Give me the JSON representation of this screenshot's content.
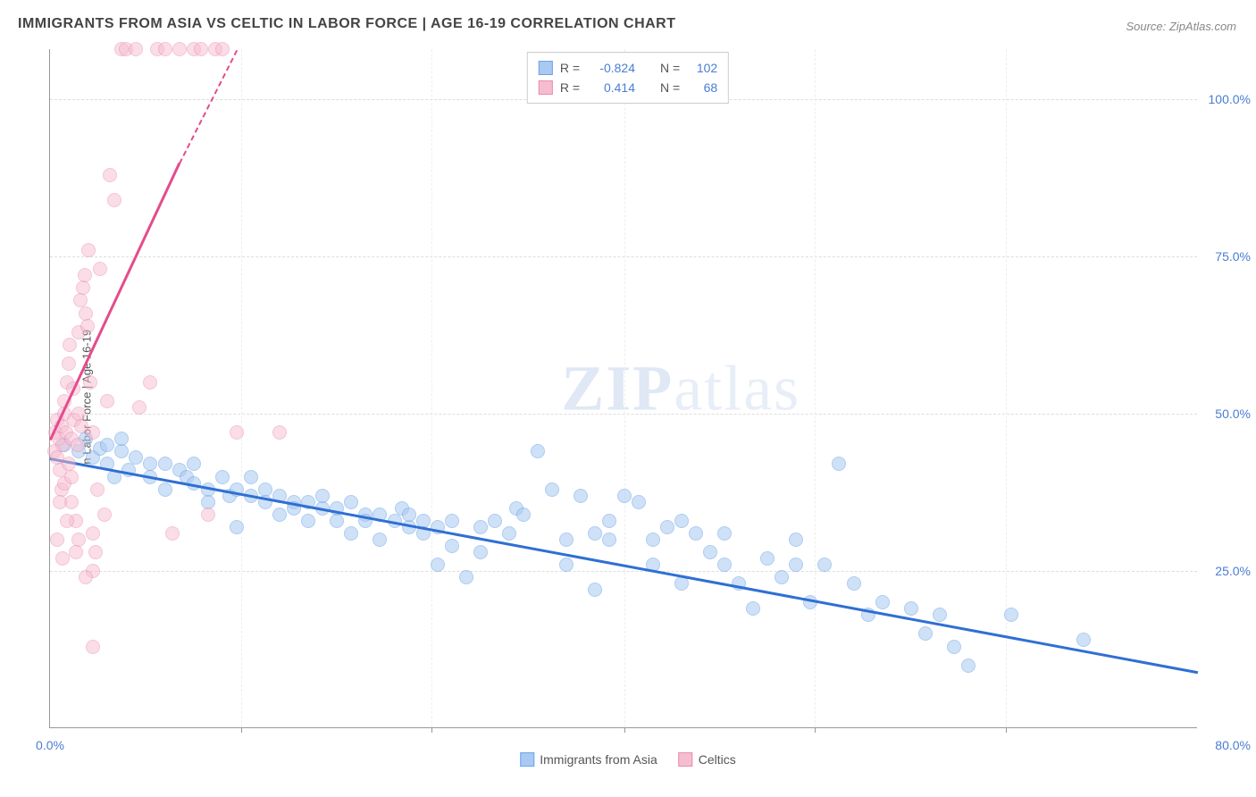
{
  "chart": {
    "type": "scatter",
    "title": "IMMIGRANTS FROM ASIA VS CELTIC IN LABOR FORCE | AGE 16-19 CORRELATION CHART",
    "source_label": "Source: ZipAtlas.com",
    "ylabel": "In Labor Force | Age 16-19",
    "background_color": "#ffffff",
    "grid_color": "#dddddd",
    "axis_color": "#999999",
    "title_fontsize": 16,
    "label_fontsize": 13,
    "tick_fontsize": 14,
    "tick_color": "#4a7dd4",
    "xlim": [
      0,
      80
    ],
    "ylim": [
      0,
      108
    ],
    "x_ticks": [
      0,
      80
    ],
    "x_tick_labels": [
      "0.0%",
      "80.0%"
    ],
    "x_minor_ticks": [
      13.3,
      26.6,
      40,
      53.3,
      66.6
    ],
    "y_ticks": [
      25,
      50,
      75,
      100
    ],
    "y_tick_labels": [
      "25.0%",
      "50.0%",
      "75.0%",
      "100.0%"
    ],
    "watermark_text_bold": "ZIP",
    "watermark_text_light": "atlas",
    "series": [
      {
        "name": "Immigrants from Asia",
        "label": "Immigrants from Asia",
        "fill_color": "#a9c9f2",
        "stroke_color": "#6ba3e8",
        "fill_opacity": 0.55,
        "marker_radius": 8,
        "r_value": "-0.824",
        "n_value": "102",
        "trend": {
          "x1": 0,
          "y1": 43,
          "x2": 80,
          "y2": 9,
          "color": "#2f6fd4",
          "width": 2.5,
          "dashed_extension": false
        },
        "points": [
          [
            1,
            45
          ],
          [
            2,
            44
          ],
          [
            2.5,
            46
          ],
          [
            3,
            43
          ],
          [
            3.5,
            44.5
          ],
          [
            4,
            42
          ],
          [
            4,
            45
          ],
          [
            4.5,
            40
          ],
          [
            5,
            44
          ],
          [
            5,
            46
          ],
          [
            5.5,
            41
          ],
          [
            6,
            43
          ],
          [
            7,
            42
          ],
          [
            7,
            40
          ],
          [
            8,
            42
          ],
          [
            8,
            38
          ],
          [
            9,
            41
          ],
          [
            9.5,
            40
          ],
          [
            10,
            39
          ],
          [
            10,
            42
          ],
          [
            11,
            38
          ],
          [
            11,
            36
          ],
          [
            12,
            40
          ],
          [
            12.5,
            37
          ],
          [
            13,
            38
          ],
          [
            13,
            32
          ],
          [
            14,
            40
          ],
          [
            14,
            37
          ],
          [
            15,
            38
          ],
          [
            15,
            36
          ],
          [
            16,
            37
          ],
          [
            16,
            34
          ],
          [
            17,
            36
          ],
          [
            17,
            35
          ],
          [
            18,
            36
          ],
          [
            18,
            33
          ],
          [
            19,
            35
          ],
          [
            19,
            37
          ],
          [
            20,
            35
          ],
          [
            20,
            33
          ],
          [
            21,
            36
          ],
          [
            21,
            31
          ],
          [
            22,
            34
          ],
          [
            22,
            33
          ],
          [
            23,
            34
          ],
          [
            23,
            30
          ],
          [
            24,
            33
          ],
          [
            24.5,
            35
          ],
          [
            25,
            32
          ],
          [
            25,
            34
          ],
          [
            26,
            33
          ],
          [
            26,
            31
          ],
          [
            27,
            32
          ],
          [
            27,
            26
          ],
          [
            28,
            33
          ],
          [
            28,
            29
          ],
          [
            29,
            24
          ],
          [
            30,
            32
          ],
          [
            30,
            28
          ],
          [
            31,
            33
          ],
          [
            32,
            31
          ],
          [
            32.5,
            35
          ],
          [
            33,
            34
          ],
          [
            34,
            44
          ],
          [
            35,
            38
          ],
          [
            36,
            30
          ],
          [
            36,
            26
          ],
          [
            37,
            37
          ],
          [
            38,
            31
          ],
          [
            38,
            22
          ],
          [
            39,
            30
          ],
          [
            39,
            33
          ],
          [
            40,
            37
          ],
          [
            41,
            36
          ],
          [
            42,
            30
          ],
          [
            42,
            26
          ],
          [
            43,
            32
          ],
          [
            44,
            33
          ],
          [
            44,
            23
          ],
          [
            45,
            31
          ],
          [
            46,
            28
          ],
          [
            47,
            31
          ],
          [
            47,
            26
          ],
          [
            48,
            23
          ],
          [
            49,
            19
          ],
          [
            50,
            27
          ],
          [
            51,
            24
          ],
          [
            52,
            26
          ],
          [
            52,
            30
          ],
          [
            53,
            20
          ],
          [
            54,
            26
          ],
          [
            55,
            42
          ],
          [
            56,
            23
          ],
          [
            57,
            18
          ],
          [
            58,
            20
          ],
          [
            60,
            19
          ],
          [
            61,
            15
          ],
          [
            62,
            18
          ],
          [
            63,
            13
          ],
          [
            64,
            10
          ],
          [
            67,
            18
          ],
          [
            72,
            14
          ]
        ]
      },
      {
        "name": "Celtics",
        "label": "Celtics",
        "fill_color": "#f6bdd0",
        "stroke_color": "#ea8bb0",
        "fill_opacity": 0.5,
        "marker_radius": 8,
        "r_value": "0.414",
        "n_value": "68",
        "trend": {
          "x1": 0,
          "y1": 46,
          "x2": 9,
          "y2": 90,
          "color": "#e54b8c",
          "width": 2.5,
          "dashed_extension": true,
          "dash_x2": 13,
          "dash_y2": 108
        },
        "points": [
          [
            0.3,
            44
          ],
          [
            0.4,
            47
          ],
          [
            0.5,
            43
          ],
          [
            0.5,
            49
          ],
          [
            0.6,
            46
          ],
          [
            0.7,
            41
          ],
          [
            0.8,
            48
          ],
          [
            0.8,
            38
          ],
          [
            0.9,
            45
          ],
          [
            1,
            50
          ],
          [
            1,
            52
          ],
          [
            1,
            39
          ],
          [
            1.1,
            47
          ],
          [
            1.2,
            55
          ],
          [
            1.3,
            42
          ],
          [
            1.3,
            58
          ],
          [
            1.4,
            61
          ],
          [
            1.5,
            46
          ],
          [
            1.5,
            36
          ],
          [
            1.6,
            54
          ],
          [
            1.7,
            49
          ],
          [
            1.8,
            33
          ],
          [
            1.9,
            45
          ],
          [
            2,
            50
          ],
          [
            2,
            30
          ],
          [
            2,
            63
          ],
          [
            2.1,
            68
          ],
          [
            2.2,
            48
          ],
          [
            2.3,
            70
          ],
          [
            2.4,
            72
          ],
          [
            2.5,
            66
          ],
          [
            2.6,
            64
          ],
          [
            2.7,
            76
          ],
          [
            2.8,
            55
          ],
          [
            3,
            31
          ],
          [
            3,
            47
          ],
          [
            3,
            25
          ],
          [
            3.2,
            28
          ],
          [
            3.3,
            38
          ],
          [
            3.5,
            73
          ],
          [
            3.8,
            34
          ],
          [
            4,
            52
          ],
          [
            4.2,
            88
          ],
          [
            4.5,
            84
          ],
          [
            5,
            108
          ],
          [
            5.3,
            108
          ],
          [
            6,
            108
          ],
          [
            6.2,
            51
          ],
          [
            7,
            55
          ],
          [
            7.5,
            108
          ],
          [
            8,
            108
          ],
          [
            8.5,
            31
          ],
          [
            9,
            108
          ],
          [
            10,
            108
          ],
          [
            10.5,
            108
          ],
          [
            11,
            34
          ],
          [
            11.5,
            108
          ],
          [
            12,
            108
          ],
          [
            13,
            47
          ],
          [
            16,
            47
          ],
          [
            3,
            13
          ],
          [
            2.5,
            24
          ],
          [
            1.8,
            28
          ],
          [
            1.2,
            33
          ],
          [
            0.7,
            36
          ],
          [
            0.5,
            30
          ],
          [
            0.9,
            27
          ],
          [
            1.5,
            40
          ]
        ]
      }
    ],
    "legend_top": {
      "r_label": "R =",
      "n_label": "N ="
    },
    "legend_bottom_labels": [
      "Immigrants from Asia",
      "Celtics"
    ]
  }
}
